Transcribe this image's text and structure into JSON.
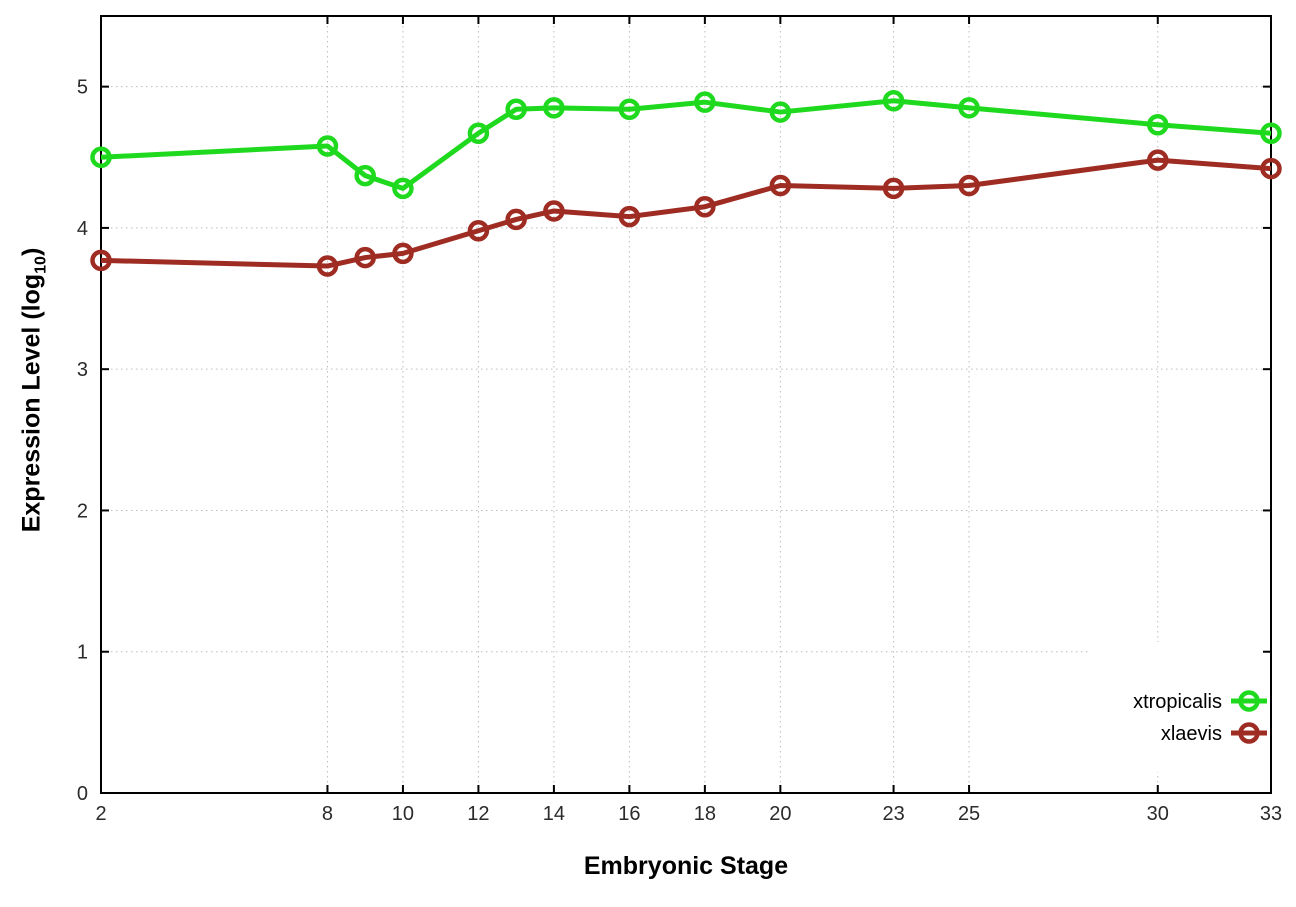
{
  "chart_data": {
    "type": "line",
    "title": "",
    "xlabel": "Embryonic Stage",
    "ylabel": "Expression Level (log10)",
    "ylabel_parts": {
      "pre": "Expression Level (log",
      "sub": "10",
      "post": ")"
    },
    "x": [
      2,
      8,
      9,
      10,
      12,
      13,
      14,
      16,
      18,
      20,
      23,
      25,
      30,
      33
    ],
    "xticks": [
      2,
      8,
      10,
      12,
      14,
      16,
      18,
      20,
      23,
      25,
      30,
      33
    ],
    "yticks": [
      0,
      1,
      2,
      3,
      4,
      5
    ],
    "xlim": [
      2,
      33
    ],
    "ylim": [
      0,
      5.5
    ],
    "grid": true,
    "legend_position": "bottom-right-inside",
    "series": [
      {
        "name": "xtropicalis",
        "color": "#1fd91f",
        "values": [
          4.5,
          4.58,
          4.37,
          4.28,
          4.67,
          4.84,
          4.85,
          4.84,
          4.89,
          4.82,
          4.9,
          4.85,
          4.73,
          4.67
        ]
      },
      {
        "name": "xlaevis",
        "color": "#9f2c23",
        "values": [
          3.77,
          3.73,
          3.79,
          3.82,
          3.98,
          4.06,
          4.12,
          4.08,
          4.15,
          4.3,
          4.28,
          4.3,
          4.48,
          4.42
        ]
      }
    ],
    "colors": {
      "grid": "#bdbdbd",
      "axis": "#000000",
      "tick_label": "#2b2b2b",
      "background": "#ffffff"
    }
  }
}
